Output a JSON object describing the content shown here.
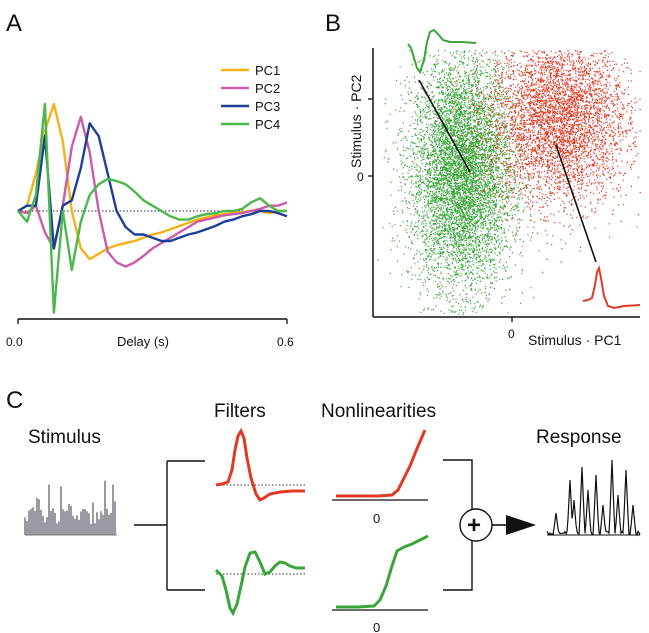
{
  "panels": {
    "a": {
      "letter": "A"
    },
    "b": {
      "letter": "B"
    },
    "c": {
      "letter": "C"
    }
  },
  "colors": {
    "pc1": "#f5b116",
    "pc2": "#cc5cab",
    "pc3": "#1e3f98",
    "pc4": "#4ab84a",
    "red": "#e03a25",
    "green": "#3aa53a",
    "gray": "#8f8f99"
  },
  "chart_data": [
    {
      "type": "line",
      "panel": "A",
      "xlabel": "Delay (s)",
      "x_tick_labels": [
        "0.0",
        "0.6"
      ],
      "xlim": [
        0.0,
        0.6
      ],
      "ylim": [
        -1.0,
        1.0
      ],
      "zero_line": "dotted",
      "legend_position": "top-right",
      "x": [
        0.0,
        0.02,
        0.04,
        0.06,
        0.08,
        0.1,
        0.12,
        0.14,
        0.16,
        0.18,
        0.2,
        0.22,
        0.24,
        0.26,
        0.28,
        0.3,
        0.32,
        0.34,
        0.36,
        0.38,
        0.4,
        0.42,
        0.44,
        0.46,
        0.48,
        0.5,
        0.52,
        0.54,
        0.56,
        0.58,
        0.6
      ],
      "series": [
        {
          "name": "PC1",
          "values": [
            0.0,
            0.05,
            0.35,
            0.75,
            1.0,
            0.65,
            0.0,
            -0.35,
            -0.45,
            -0.4,
            -0.35,
            -0.32,
            -0.3,
            -0.28,
            -0.25,
            -0.22,
            -0.2,
            -0.17,
            -0.14,
            -0.11,
            -0.08,
            -0.06,
            -0.04,
            -0.03,
            -0.02,
            -0.01,
            0.0,
            0.0,
            -0.02,
            0.0,
            0.0
          ]
        },
        {
          "name": "PC2",
          "values": [
            0.0,
            -0.02,
            0.05,
            -0.2,
            -0.35,
            0.05,
            0.6,
            0.88,
            0.55,
            0.0,
            -0.38,
            -0.48,
            -0.52,
            -0.48,
            -0.42,
            -0.35,
            -0.3,
            -0.25,
            -0.2,
            -0.15,
            -0.1,
            -0.08,
            -0.06,
            -0.04,
            -0.03,
            -0.02,
            0.0,
            0.02,
            0.05,
            0.05,
            0.08
          ]
        },
        {
          "name": "PC3",
          "values": [
            0.0,
            0.05,
            0.05,
            0.7,
            -0.35,
            0.05,
            0.1,
            0.4,
            0.82,
            0.7,
            0.35,
            0.0,
            -0.15,
            -0.22,
            -0.22,
            -0.25,
            -0.28,
            -0.28,
            -0.25,
            -0.22,
            -0.2,
            -0.17,
            -0.14,
            -0.1,
            -0.08,
            -0.05,
            -0.03,
            0.0,
            0.0,
            -0.02,
            -0.05
          ]
        },
        {
          "name": "PC4",
          "values": [
            0.0,
            -0.1,
            0.15,
            1.0,
            -0.95,
            0.0,
            -0.55,
            -0.1,
            0.15,
            0.25,
            0.3,
            0.28,
            0.25,
            0.18,
            0.1,
            0.05,
            0.0,
            -0.05,
            -0.08,
            -0.08,
            -0.05,
            -0.03,
            -0.02,
            0.0,
            0.0,
            0.02,
            0.08,
            0.12,
            0.05,
            0.0,
            0.0
          ]
        }
      ]
    },
    {
      "type": "scatter",
      "panel": "B",
      "xlabel": "Stimulus · PC1",
      "ylabel": "Stimulus · PC2",
      "x_tick_labels": [
        "0"
      ],
      "y_tick_labels": [
        "0"
      ],
      "xlim": [
        -3.0,
        3.0
      ],
      "ylim": [
        -3.0,
        3.0
      ],
      "series": [
        {
          "name": "",
          "color": "green",
          "center": [
            -1.1,
            0.05
          ],
          "spread": [
            0.55,
            0.75
          ],
          "count": 9000
        },
        {
          "name": "",
          "color": "red",
          "center": [
            1.0,
            0.75
          ],
          "spread": [
            0.75,
            0.55
          ],
          "count": 4500
        }
      ]
    }
  ],
  "panel_c": {
    "stimulus_label": "Stimulus",
    "filters_label": "Filters",
    "nonlinearities_label": "Nonlinearities",
    "response_label": "Response",
    "zero_label_top": "0",
    "zero_label_bottom": "0",
    "sum_symbol": "+"
  }
}
